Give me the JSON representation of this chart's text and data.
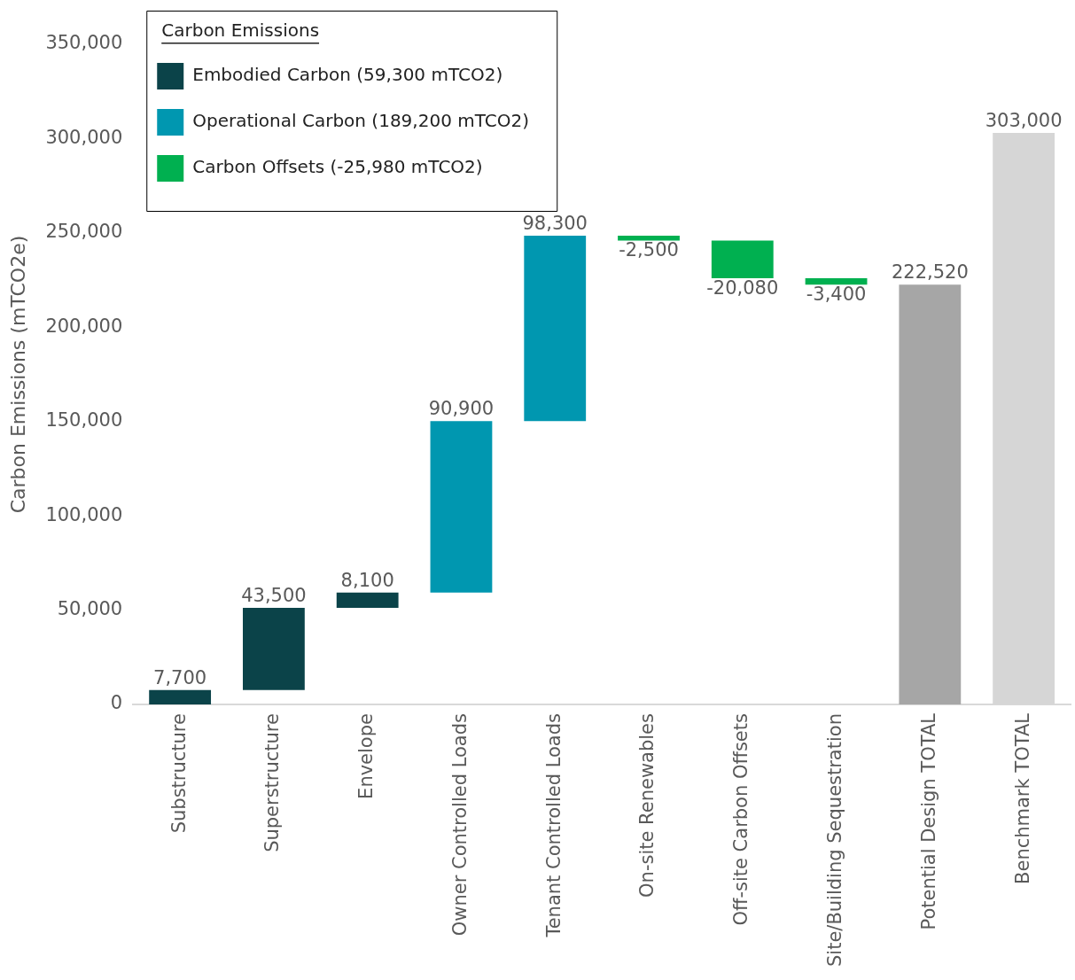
{
  "chart_data": {
    "type": "bar",
    "ylabel": "Carbon Emissions (mTCO2e)",
    "legend_title": "Carbon Emissions",
    "legend": "top left",
    "grid": false,
    "categories": [
      "Substructure",
      "Superstructure",
      "Envelope",
      "Owner Controlled Loads",
      "Tenant Controlled Loads",
      "On-site Renewables",
      "Off-site Carbon Offsets",
      "Site/Building Sequestration",
      "Potential Design TOTAL",
      "Benchmark TOTAL"
    ],
    "ylim": [
      0,
      350000
    ],
    "yticks": [
      {
        "value": 0,
        "label": "0"
      },
      {
        "value": 50000,
        "label": "50,000"
      },
      {
        "value": 100000,
        "label": "100,000"
      },
      {
        "value": 150000,
        "label": "150,000"
      },
      {
        "value": 200000,
        "label": "200,000"
      },
      {
        "value": 250000,
        "label": "250,000"
      },
      {
        "value": 300000,
        "label": "300,000"
      },
      {
        "value": 350000,
        "label": "350,000"
      }
    ],
    "series": [
      {
        "name": "Embodied Carbon (59,300 mTCO2)",
        "color": "#0b4349",
        "values": [
          7700,
          43500,
          8100,
          null,
          null,
          null,
          null,
          null,
          null,
          null
        ],
        "base": [
          0,
          7700,
          51200,
          null,
          null,
          null,
          null,
          null,
          null,
          null
        ],
        "value_labels": [
          "7,700",
          "43,500",
          "8,100",
          null,
          null,
          null,
          null,
          null,
          null,
          null
        ]
      },
      {
        "name": "Operational Carbon (189,200 mTCO2)",
        "color": "#0097b0",
        "values": [
          null,
          null,
          null,
          90900,
          98300,
          null,
          null,
          null,
          null,
          null
        ],
        "base": [
          null,
          null,
          null,
          59300,
          150200,
          null,
          null,
          null,
          null,
          null
        ],
        "value_labels": [
          null,
          null,
          null,
          "90,900",
          "98,300",
          null,
          null,
          null,
          null,
          null
        ]
      },
      {
        "name": "Carbon Offsets (-25,980 mTCO2)",
        "color": "#00b050",
        "values": [
          null,
          null,
          null,
          null,
          null,
          -2500,
          -20080,
          -3400,
          null,
          null
        ],
        "base": [
          null,
          null,
          null,
          null,
          null,
          248500,
          246000,
          225920,
          null,
          null
        ],
        "value_labels": [
          null,
          null,
          null,
          null,
          null,
          "-2,500",
          "-20,080",
          "-3,400",
          null,
          null
        ]
      },
      {
        "colors": [
          "#a6a6a6",
          "#a6a6a6",
          "#a6a6a6",
          "#a6a6a6",
          "#a6a6a6",
          "#a6a6a6",
          "#a6a6a6",
          "#a6a6a6",
          "#a6a6a6",
          "#d6d6d6"
        ],
        "values": [
          null,
          null,
          null,
          null,
          null,
          null,
          null,
          null,
          222520,
          303000
        ],
        "base": [
          null,
          null,
          null,
          null,
          null,
          null,
          null,
          null,
          0,
          0
        ],
        "value_labels": [
          null,
          null,
          null,
          null,
          null,
          null,
          null,
          null,
          "222,520",
          "303,000"
        ]
      }
    ]
  }
}
